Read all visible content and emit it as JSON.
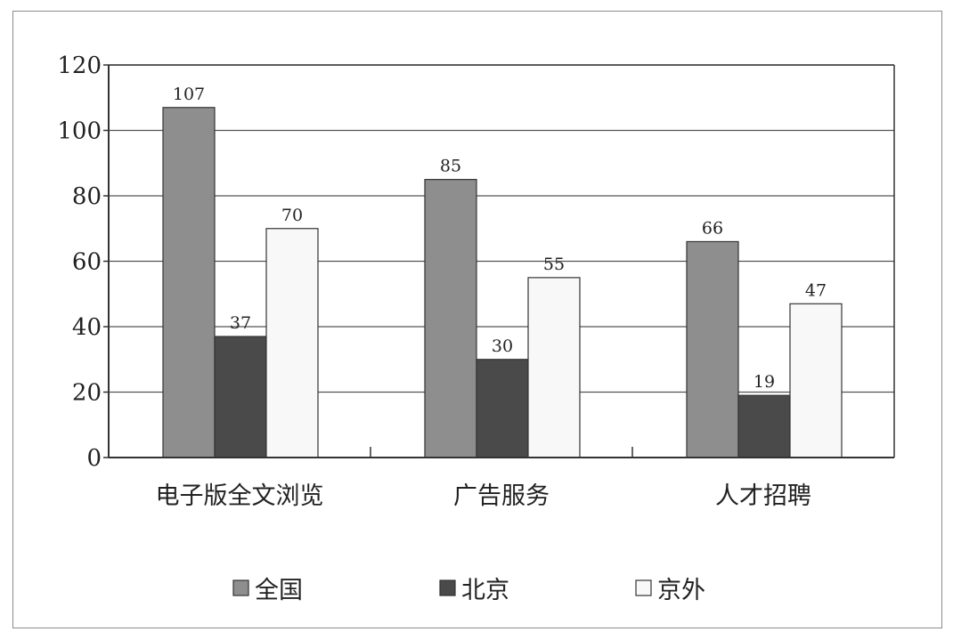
{
  "chart_data": {
    "type": "bar",
    "categories": [
      "电子版全文浏览",
      "广告服务",
      "人才招聘"
    ],
    "series": [
      {
        "name": "全国",
        "values": [
          107,
          85,
          66
        ],
        "color": "#8e8e8e"
      },
      {
        "name": "北京",
        "values": [
          37,
          30,
          19
        ],
        "color": "#4a4a4a"
      },
      {
        "name": "京外",
        "values": [
          70,
          55,
          47
        ],
        "color": "#f8f8f8"
      }
    ],
    "ylim": [
      0,
      120
    ],
    "yticks": [
      0,
      20,
      40,
      60,
      80,
      100,
      120
    ],
    "grid": true,
    "legend": "bottom",
    "title": "",
    "xlabel": "",
    "ylabel": ""
  }
}
